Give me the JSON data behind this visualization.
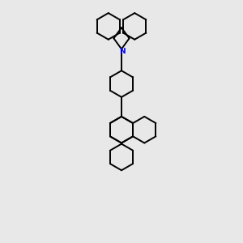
{
  "bg_color": "#e8e8e8",
  "bond_color": "#000000",
  "nitrogen_color": "#0000ff",
  "linewidth": 1.4,
  "figsize": [
    3.0,
    3.0
  ],
  "dpi": 100,
  "xlim": [
    0,
    10
  ],
  "ylim": [
    0,
    13
  ]
}
